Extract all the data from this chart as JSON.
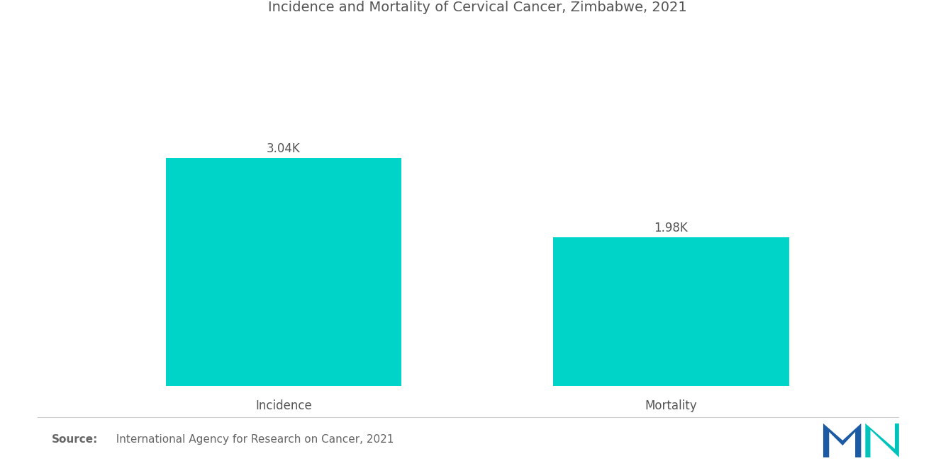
{
  "title": "Incidence and Mortality of Cervical Cancer, Zimbabwe, 2021",
  "categories": [
    "Incidence",
    "Mortality"
  ],
  "values": [
    3.04,
    1.98
  ],
  "value_labels": [
    "3.04K",
    "1.98K"
  ],
  "bar_color": "#00D4C8",
  "background_color": "#ffffff",
  "title_fontsize": 14,
  "label_fontsize": 12,
  "value_fontsize": 12,
  "source_bold": "Source:",
  "source_rest": "  International Agency for Research on Cancer, 2021",
  "ylim": [
    0,
    4.2
  ],
  "bar_width": 0.28,
  "x_positions": [
    0.27,
    0.73
  ]
}
